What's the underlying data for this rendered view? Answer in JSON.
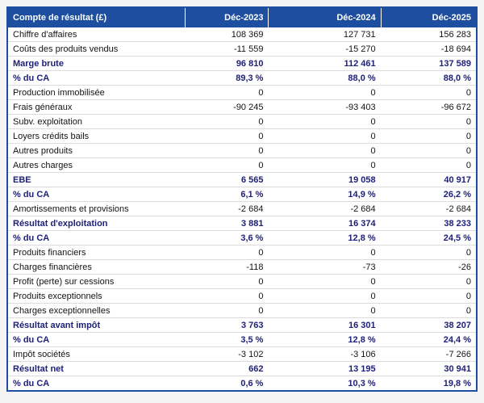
{
  "table": {
    "header": {
      "title": "Compte de résultat (£)",
      "columns": [
        "Déc-2023",
        "Déc-2024",
        "Déc-2025"
      ]
    },
    "rows": [
      {
        "label": "Chiffre d'affaires",
        "values": [
          "108 369",
          "127 731",
          "156 283"
        ],
        "emphasis": false
      },
      {
        "label": "Coûts des produits vendus",
        "values": [
          "-11 559",
          "-15 270",
          "-18 694"
        ],
        "emphasis": false
      },
      {
        "label": "Marge brute",
        "values": [
          "96 810",
          "112 461",
          "137 589"
        ],
        "emphasis": true
      },
      {
        "label": "% du CA",
        "values": [
          "89,3 %",
          "88,0 %",
          "88,0 %"
        ],
        "emphasis": true
      },
      {
        "label": "Production immobilisée",
        "values": [
          "0",
          "0",
          "0"
        ],
        "emphasis": false
      },
      {
        "label": "Frais généraux",
        "values": [
          "-90 245",
          "-93 403",
          "-96 672"
        ],
        "emphasis": false
      },
      {
        "label": "Subv. exploitation",
        "values": [
          "0",
          "0",
          "0"
        ],
        "emphasis": false
      },
      {
        "label": "Loyers crédits bails",
        "values": [
          "0",
          "0",
          "0"
        ],
        "emphasis": false
      },
      {
        "label": "Autres produits",
        "values": [
          "0",
          "0",
          "0"
        ],
        "emphasis": false
      },
      {
        "label": "Autres charges",
        "values": [
          "0",
          "0",
          "0"
        ],
        "emphasis": false
      },
      {
        "label": "EBE",
        "values": [
          "6 565",
          "19 058",
          "40 917"
        ],
        "emphasis": true
      },
      {
        "label": "% du CA",
        "values": [
          "6,1 %",
          "14,9 %",
          "26,2 %"
        ],
        "emphasis": true
      },
      {
        "label": "Amortissements et provisions",
        "values": [
          "-2 684",
          "-2 684",
          "-2 684"
        ],
        "emphasis": false
      },
      {
        "label": "Résultat d'exploitation",
        "values": [
          "3 881",
          "16 374",
          "38 233"
        ],
        "emphasis": true
      },
      {
        "label": "% du CA",
        "values": [
          "3,6 %",
          "12,8 %",
          "24,5 %"
        ],
        "emphasis": true
      },
      {
        "label": "Produits financiers",
        "values": [
          "0",
          "0",
          "0"
        ],
        "emphasis": false
      },
      {
        "label": "Charges financières",
        "values": [
          "-118",
          "-73",
          "-26"
        ],
        "emphasis": false
      },
      {
        "label": "Profit (perte) sur cessions",
        "values": [
          "0",
          "0",
          "0"
        ],
        "emphasis": false
      },
      {
        "label": "Produits exceptionnels",
        "values": [
          "0",
          "0",
          "0"
        ],
        "emphasis": false
      },
      {
        "label": "Charges exceptionnelles",
        "values": [
          "0",
          "0",
          "0"
        ],
        "emphasis": false
      },
      {
        "label": "Résultat avant impôt",
        "values": [
          "3 763",
          "16 301",
          "38 207"
        ],
        "emphasis": true
      },
      {
        "label": "% du CA",
        "values": [
          "3,5 %",
          "12,8 %",
          "24,4 %"
        ],
        "emphasis": true
      },
      {
        "label": "Impôt sociétés",
        "values": [
          "-3 102",
          "-3 106",
          "-7 266"
        ],
        "emphasis": false
      },
      {
        "label": "Résultat net",
        "values": [
          "662",
          "13 195",
          "30 941"
        ],
        "emphasis": true
      },
      {
        "label": "% du CA",
        "values": [
          "0,6 %",
          "10,3 %",
          "19,8 %"
        ],
        "emphasis": true
      }
    ]
  },
  "colors": {
    "header_bg": "#1d4e9f",
    "header_text": "#ffffff",
    "table_border": "#1d4e9f",
    "row_divider": "#dcdcdc",
    "body_text": "#141414",
    "emphasis_text": "#1f2178",
    "page_bg": "#f3f3f3"
  },
  "chart_data": {
    "type": "table",
    "title": "Compte de résultat (£)",
    "columns": [
      "Déc-2023",
      "Déc-2024",
      "Déc-2025"
    ],
    "rows": [
      {
        "label": "Chiffre d'affaires",
        "values": [
          108369,
          127731,
          156283
        ]
      },
      {
        "label": "Coûts des produits vendus",
        "values": [
          -11559,
          -15270,
          -18694
        ]
      },
      {
        "label": "Marge brute",
        "values": [
          96810,
          112461,
          137589
        ]
      },
      {
        "label": "% du CA (marge brute)",
        "values_pct": [
          89.3,
          88.0,
          88.0
        ]
      },
      {
        "label": "Production immobilisée",
        "values": [
          0,
          0,
          0
        ]
      },
      {
        "label": "Frais généraux",
        "values": [
          -90245,
          -93403,
          -96672
        ]
      },
      {
        "label": "Subv. exploitation",
        "values": [
          0,
          0,
          0
        ]
      },
      {
        "label": "Loyers crédits bails",
        "values": [
          0,
          0,
          0
        ]
      },
      {
        "label": "Autres produits",
        "values": [
          0,
          0,
          0
        ]
      },
      {
        "label": "Autres charges",
        "values": [
          0,
          0,
          0
        ]
      },
      {
        "label": "EBE",
        "values": [
          6565,
          19058,
          40917
        ]
      },
      {
        "label": "% du CA (EBE)",
        "values_pct": [
          6.1,
          14.9,
          26.2
        ]
      },
      {
        "label": "Amortissements et provisions",
        "values": [
          -2684,
          -2684,
          -2684
        ]
      },
      {
        "label": "Résultat d'exploitation",
        "values": [
          3881,
          16374,
          38233
        ]
      },
      {
        "label": "% du CA (résultat d'exploitation)",
        "values_pct": [
          3.6,
          12.8,
          24.5
        ]
      },
      {
        "label": "Produits financiers",
        "values": [
          0,
          0,
          0
        ]
      },
      {
        "label": "Charges financières",
        "values": [
          -118,
          -73,
          -26
        ]
      },
      {
        "label": "Profit (perte) sur cessions",
        "values": [
          0,
          0,
          0
        ]
      },
      {
        "label": "Produits exceptionnels",
        "values": [
          0,
          0,
          0
        ]
      },
      {
        "label": "Charges exceptionnelles",
        "values": [
          0,
          0,
          0
        ]
      },
      {
        "label": "Résultat avant impôt",
        "values": [
          3763,
          16301,
          38207
        ]
      },
      {
        "label": "% du CA (résultat avant impôt)",
        "values_pct": [
          3.5,
          12.8,
          24.4
        ]
      },
      {
        "label": "Impôt sociétés",
        "values": [
          -3102,
          -3106,
          -7266
        ]
      },
      {
        "label": "Résultat net",
        "values": [
          662,
          13195,
          30941
        ]
      },
      {
        "label": "% du CA (résultat net)",
        "values_pct": [
          0.6,
          10.3,
          19.8
        ]
      }
    ]
  }
}
